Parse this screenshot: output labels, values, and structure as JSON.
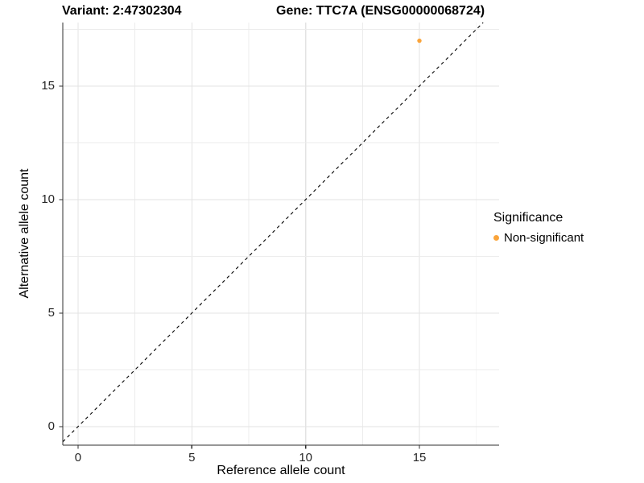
{
  "titles": {
    "left": "Variant: 2:47302304",
    "right": "Gene: TTC7A (ENSG00000068724)"
  },
  "chart_data": {
    "type": "scatter",
    "xlabel": "Reference allele count",
    "ylabel": "Alternative allele count",
    "x_ticks": [
      0,
      5,
      10,
      15
    ],
    "y_ticks": [
      0,
      5,
      10,
      15
    ],
    "x_range": [
      -0.67,
      18.5
    ],
    "y_range": [
      -0.82,
      17.8
    ],
    "grid": {
      "show": true,
      "major_step": 5,
      "minor_step": 2.5,
      "major_color": "#e3e3e3",
      "minor_color": "#ececec"
    },
    "identity_line": {
      "style": "dashed",
      "slope": 1,
      "intercept": 0,
      "color": "#000000"
    },
    "series": [
      {
        "name": "Non-significant",
        "color": "#FAA43A",
        "points": [
          {
            "x": 15,
            "y": 17
          }
        ]
      }
    ],
    "legend": {
      "title": "Significance",
      "position": "right",
      "items": [
        {
          "label": "Non-significant",
          "color": "#FAA43A"
        }
      ]
    }
  },
  "colors": {
    "background": "#ffffff",
    "axis_line": "#2f2f2f",
    "tick_mark": "#2f2f2f",
    "tick_label": "#262626"
  }
}
